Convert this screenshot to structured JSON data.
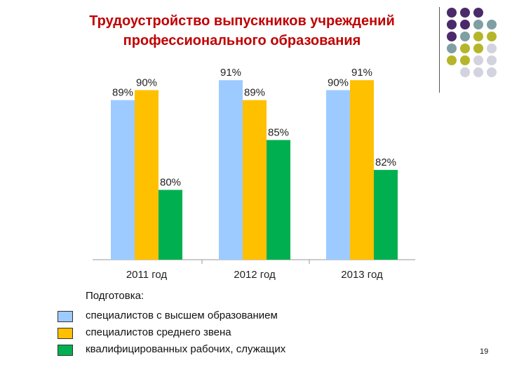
{
  "slide": {
    "title_line1": "Трудоустройство выпускников учреждений",
    "title_line2": "профессионального образования",
    "page_number": "19"
  },
  "colors": {
    "title": "#c00000",
    "higher": "#9dcbff",
    "middle": "#ffc000",
    "workers": "#00b050",
    "dot_purple": "#4b2a6b",
    "dot_teal": "#7f9fa3",
    "dot_olive": "#b5b52a",
    "dot_grey": "#d3d3df"
  },
  "legend": {
    "title": "Подготовка:",
    "items": [
      {
        "label": "специалистов с высшем образованием",
        "color": "#9dcbff"
      },
      {
        "label": "специалистов среднего звена",
        "color": "#ffc000"
      },
      {
        "label": "квалифицированных рабочих, служащих",
        "color": "#00b050"
      }
    ]
  },
  "chart_data": {
    "type": "bar",
    "title": "Трудоустройство выпускников учреждений профессионального образования",
    "categories": [
      "2011 год",
      "2012 год",
      "2013 год"
    ],
    "series": [
      {
        "name": "специалистов с высшем образованием",
        "values": [
          89,
          91,
          90
        ],
        "labels": [
          "89%",
          "91%",
          "90%"
        ]
      },
      {
        "name": "специалистов среднего звена",
        "values": [
          90,
          89,
          91
        ],
        "labels": [
          "90%",
          "89%",
          "91%"
        ]
      },
      {
        "name": "квалифицированных рабочих, служащих",
        "values": [
          80,
          85,
          82
        ],
        "labels": [
          "80%",
          "85%",
          "82%"
        ]
      }
    ],
    "ylim": [
      73,
      92
    ],
    "xlabel": "",
    "ylabel": "",
    "grid": false,
    "legend_position": "bottom-left"
  }
}
